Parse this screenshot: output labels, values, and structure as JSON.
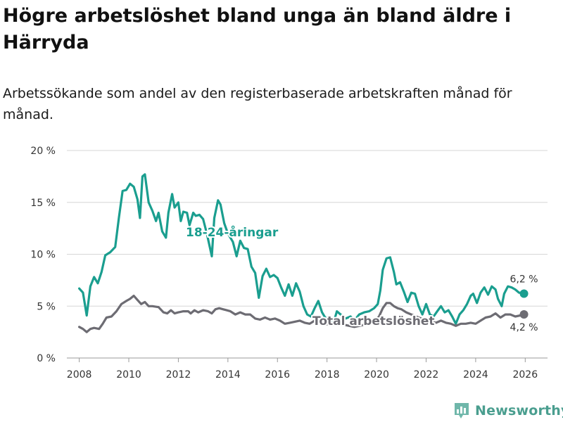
{
  "title": "Högre arbetslöshet bland unga än bland äldre i Härryda",
  "subtitle": "Arbetssökande som andel av den registerbaserade arbetskraften månad för månad.",
  "brand": {
    "name": "Newsworthy",
    "icon": "newsworthy-logo-icon"
  },
  "colors": {
    "youth": "#1a9e8f",
    "total": "#6d6c73",
    "grid": "#d6d6d6",
    "text": "#333333"
  },
  "chart_data": {
    "type": "line",
    "title": "Högre arbetslöshet bland unga än bland äldre i Härryda",
    "subtitle": "Arbetssökande som andel av den registerbaserade arbetskraften månad för månad.",
    "xlabel": "",
    "ylabel": "",
    "xlim": [
      2007.5,
      2026.9
    ],
    "ylim": [
      0,
      20
    ],
    "x_ticks": [
      2008,
      2010,
      2012,
      2014,
      2016,
      2018,
      2020,
      2022,
      2024,
      2026
    ],
    "x_tick_labels": [
      "2008",
      "2010",
      "2012",
      "2014",
      "2016",
      "2018",
      "2020",
      "2022",
      "2024",
      "2026"
    ],
    "y_ticks": [
      0,
      5,
      10,
      15,
      20
    ],
    "y_tick_labels": [
      "0 %",
      "5 %",
      "10 %",
      "15 %",
      "20 %"
    ],
    "grid": true,
    "series": [
      {
        "name": "18-24-åringar",
        "label": "18-24-åringar",
        "end_label": "6,2 %",
        "points": [
          [
            2008.0,
            6.7
          ],
          [
            2008.15,
            6.3
          ],
          [
            2008.3,
            4.1
          ],
          [
            2008.45,
            6.9
          ],
          [
            2008.6,
            7.8
          ],
          [
            2008.75,
            7.2
          ],
          [
            2008.9,
            8.3
          ],
          [
            2009.05,
            9.9
          ],
          [
            2009.25,
            10.2
          ],
          [
            2009.45,
            10.7
          ],
          [
            2009.6,
            13.5
          ],
          [
            2009.75,
            16.1
          ],
          [
            2009.9,
            16.2
          ],
          [
            2010.05,
            16.8
          ],
          [
            2010.2,
            16.5
          ],
          [
            2010.35,
            15.3
          ],
          [
            2010.45,
            13.5
          ],
          [
            2010.55,
            17.5
          ],
          [
            2010.65,
            17.7
          ],
          [
            2010.8,
            15.0
          ],
          [
            2010.95,
            14.2
          ],
          [
            2011.1,
            13.2
          ],
          [
            2011.2,
            14.0
          ],
          [
            2011.35,
            12.2
          ],
          [
            2011.5,
            11.6
          ],
          [
            2011.6,
            14.0
          ],
          [
            2011.75,
            15.8
          ],
          [
            2011.85,
            14.5
          ],
          [
            2012.0,
            15.0
          ],
          [
            2012.1,
            13.2
          ],
          [
            2012.2,
            14.1
          ],
          [
            2012.35,
            14.0
          ],
          [
            2012.45,
            12.8
          ],
          [
            2012.6,
            14.0
          ],
          [
            2012.7,
            13.7
          ],
          [
            2012.85,
            13.8
          ],
          [
            2013.0,
            13.4
          ],
          [
            2013.15,
            12.0
          ],
          [
            2013.35,
            9.8
          ],
          [
            2013.45,
            13.5
          ],
          [
            2013.6,
            15.2
          ],
          [
            2013.7,
            14.8
          ],
          [
            2013.85,
            13.0
          ],
          [
            2014.0,
            12.0
          ],
          [
            2014.2,
            11.2
          ],
          [
            2014.35,
            9.8
          ],
          [
            2014.5,
            11.3
          ],
          [
            2014.65,
            10.6
          ],
          [
            2014.8,
            10.5
          ],
          [
            2014.95,
            8.8
          ],
          [
            2015.1,
            8.2
          ],
          [
            2015.25,
            5.8
          ],
          [
            2015.4,
            7.9
          ],
          [
            2015.55,
            8.6
          ],
          [
            2015.7,
            7.8
          ],
          [
            2015.85,
            8.0
          ],
          [
            2016.0,
            7.7
          ],
          [
            2016.15,
            6.8
          ],
          [
            2016.3,
            6.0
          ],
          [
            2016.45,
            7.1
          ],
          [
            2016.6,
            6.0
          ],
          [
            2016.75,
            7.2
          ],
          [
            2016.9,
            6.4
          ],
          [
            2017.05,
            5.0
          ],
          [
            2017.2,
            4.2
          ],
          [
            2017.35,
            4.0
          ],
          [
            2017.5,
            4.8
          ],
          [
            2017.65,
            5.5
          ],
          [
            2017.8,
            4.4
          ],
          [
            2017.95,
            3.8
          ],
          [
            2018.1,
            4.0
          ],
          [
            2018.25,
            3.3
          ],
          [
            2018.4,
            4.5
          ],
          [
            2018.55,
            4.2
          ],
          [
            2018.75,
            3.8
          ],
          [
            2018.95,
            4.0
          ],
          [
            2019.1,
            3.6
          ],
          [
            2019.3,
            4.2
          ],
          [
            2019.5,
            4.4
          ],
          [
            2019.7,
            4.5
          ],
          [
            2019.9,
            4.8
          ],
          [
            2020.05,
            5.2
          ],
          [
            2020.15,
            6.5
          ],
          [
            2020.25,
            8.5
          ],
          [
            2020.4,
            9.6
          ],
          [
            2020.55,
            9.7
          ],
          [
            2020.7,
            8.3
          ],
          [
            2020.8,
            7.1
          ],
          [
            2020.95,
            7.3
          ],
          [
            2021.1,
            6.4
          ],
          [
            2021.25,
            5.4
          ],
          [
            2021.4,
            6.3
          ],
          [
            2021.55,
            6.2
          ],
          [
            2021.7,
            5.0
          ],
          [
            2021.85,
            4.2
          ],
          [
            2022.0,
            5.2
          ],
          [
            2022.15,
            4.2
          ],
          [
            2022.3,
            4.0
          ],
          [
            2022.45,
            4.5
          ],
          [
            2022.6,
            5.0
          ],
          [
            2022.75,
            4.4
          ],
          [
            2022.9,
            4.6
          ],
          [
            2023.05,
            4.0
          ],
          [
            2023.2,
            3.3
          ],
          [
            2023.35,
            4.2
          ],
          [
            2023.5,
            4.6
          ],
          [
            2023.65,
            5.2
          ],
          [
            2023.8,
            6.0
          ],
          [
            2023.9,
            6.2
          ],
          [
            2024.05,
            5.3
          ],
          [
            2024.2,
            6.3
          ],
          [
            2024.35,
            6.8
          ],
          [
            2024.5,
            6.1
          ],
          [
            2024.65,
            6.9
          ],
          [
            2024.8,
            6.6
          ],
          [
            2024.9,
            5.7
          ],
          [
            2025.05,
            5.0
          ],
          [
            2025.15,
            6.2
          ],
          [
            2025.3,
            6.9
          ],
          [
            2025.45,
            6.8
          ],
          [
            2025.6,
            6.6
          ],
          [
            2025.75,
            6.3
          ],
          [
            2025.95,
            6.2
          ]
        ]
      },
      {
        "name": "Total arbetslöshet",
        "label": "Total arbetslöshet",
        "end_label": "4,2 %",
        "points": [
          [
            2008.0,
            3.0
          ],
          [
            2008.15,
            2.8
          ],
          [
            2008.3,
            2.5
          ],
          [
            2008.45,
            2.8
          ],
          [
            2008.6,
            2.9
          ],
          [
            2008.8,
            2.8
          ],
          [
            2008.95,
            3.3
          ],
          [
            2009.1,
            3.9
          ],
          [
            2009.3,
            4.0
          ],
          [
            2009.5,
            4.5
          ],
          [
            2009.7,
            5.2
          ],
          [
            2009.9,
            5.5
          ],
          [
            2010.05,
            5.7
          ],
          [
            2010.2,
            6.0
          ],
          [
            2010.35,
            5.6
          ],
          [
            2010.5,
            5.2
          ],
          [
            2010.65,
            5.4
          ],
          [
            2010.8,
            5.0
          ],
          [
            2010.95,
            5.0
          ],
          [
            2011.2,
            4.9
          ],
          [
            2011.4,
            4.4
          ],
          [
            2011.55,
            4.3
          ],
          [
            2011.7,
            4.6
          ],
          [
            2011.85,
            4.3
          ],
          [
            2012.0,
            4.4
          ],
          [
            2012.2,
            4.5
          ],
          [
            2012.4,
            4.5
          ],
          [
            2012.5,
            4.3
          ],
          [
            2012.65,
            4.6
          ],
          [
            2012.8,
            4.4
          ],
          [
            2013.0,
            4.6
          ],
          [
            2013.2,
            4.5
          ],
          [
            2013.35,
            4.3
          ],
          [
            2013.5,
            4.7
          ],
          [
            2013.65,
            4.8
          ],
          [
            2013.8,
            4.7
          ],
          [
            2013.95,
            4.6
          ],
          [
            2014.1,
            4.5
          ],
          [
            2014.3,
            4.2
          ],
          [
            2014.5,
            4.4
          ],
          [
            2014.7,
            4.2
          ],
          [
            2014.9,
            4.2
          ],
          [
            2015.1,
            3.8
          ],
          [
            2015.3,
            3.7
          ],
          [
            2015.5,
            3.9
          ],
          [
            2015.7,
            3.7
          ],
          [
            2015.9,
            3.8
          ],
          [
            2016.1,
            3.6
          ],
          [
            2016.3,
            3.3
          ],
          [
            2016.5,
            3.4
          ],
          [
            2016.7,
            3.5
          ],
          [
            2016.9,
            3.6
          ],
          [
            2017.1,
            3.4
          ],
          [
            2017.3,
            3.3
          ],
          [
            2017.5,
            3.6
          ],
          [
            2017.7,
            3.4
          ],
          [
            2017.9,
            3.2
          ],
          [
            2018.1,
            3.3
          ],
          [
            2018.3,
            3.2
          ],
          [
            2018.5,
            3.3
          ],
          [
            2018.7,
            3.2
          ],
          [
            2018.9,
            3.1
          ],
          [
            2019.1,
            3.0
          ],
          [
            2019.3,
            3.1
          ],
          [
            2019.5,
            3.2
          ],
          [
            2019.7,
            3.3
          ],
          [
            2019.9,
            3.5
          ],
          [
            2020.1,
            4.0
          ],
          [
            2020.25,
            4.8
          ],
          [
            2020.4,
            5.3
          ],
          [
            2020.55,
            5.3
          ],
          [
            2020.7,
            5.0
          ],
          [
            2020.85,
            4.8
          ],
          [
            2021.0,
            4.7
          ],
          [
            2021.2,
            4.4
          ],
          [
            2021.4,
            4.2
          ],
          [
            2021.6,
            4.0
          ],
          [
            2021.8,
            3.8
          ],
          [
            2022.0,
            3.7
          ],
          [
            2022.2,
            3.5
          ],
          [
            2022.4,
            3.4
          ],
          [
            2022.6,
            3.6
          ],
          [
            2022.8,
            3.4
          ],
          [
            2023.0,
            3.3
          ],
          [
            2023.2,
            3.1
          ],
          [
            2023.4,
            3.3
          ],
          [
            2023.6,
            3.3
          ],
          [
            2023.8,
            3.4
          ],
          [
            2024.0,
            3.3
          ],
          [
            2024.2,
            3.6
          ],
          [
            2024.4,
            3.9
          ],
          [
            2024.6,
            4.0
          ],
          [
            2024.8,
            4.3
          ],
          [
            2025.0,
            3.9
          ],
          [
            2025.2,
            4.2
          ],
          [
            2025.4,
            4.2
          ],
          [
            2025.6,
            4.0
          ],
          [
            2025.8,
            4.1
          ],
          [
            2025.95,
            4.2
          ]
        ]
      }
    ]
  }
}
